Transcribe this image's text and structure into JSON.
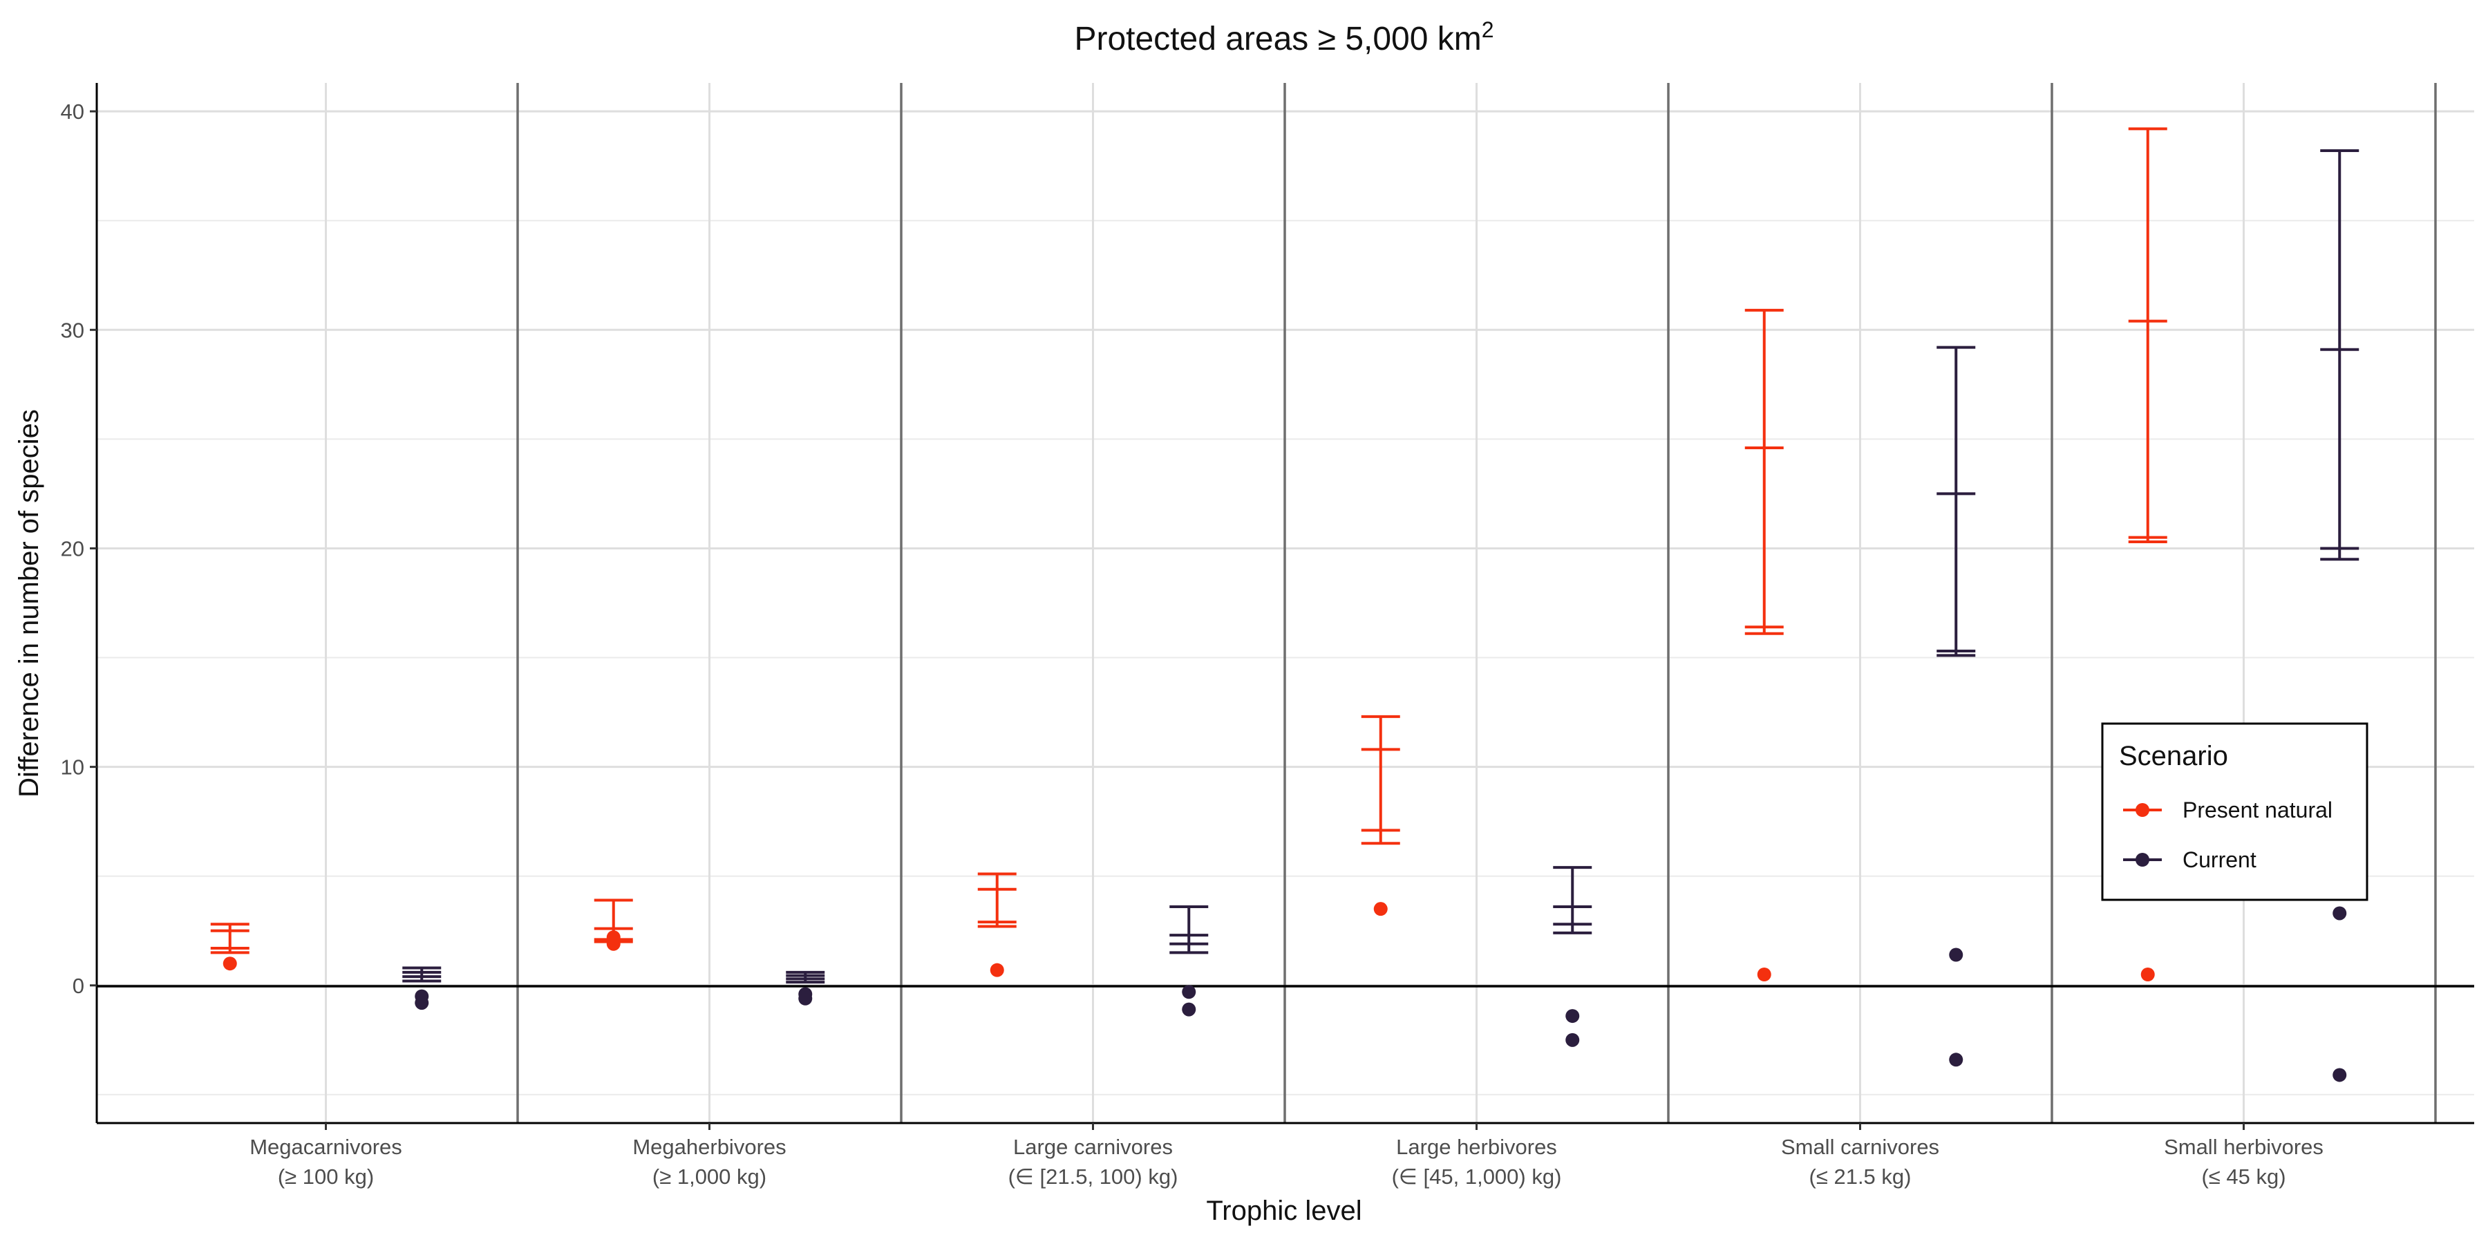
{
  "chart_data": {
    "type": "scatter",
    "title": "Protected areas ≥ 5,000 km",
    "title_superscript": "2",
    "xlabel": "Trophic level",
    "ylabel": "Difference in number of species",
    "ylim": [
      -6.3,
      41.3
    ],
    "yticks": [
      0,
      10,
      20,
      30,
      40
    ],
    "grid": true,
    "categories": [
      {
        "name": "Megacarnivores",
        "sub": "(≥ 100 kg)"
      },
      {
        "name": "Megaherbivores",
        "sub": "(≥ 1,000 kg)"
      },
      {
        "name": "Large carnivores",
        "sub": "(∈ [21.5, 100) kg)"
      },
      {
        "name": "Large herbivores",
        "sub": "(∈ [45, 1,000) kg)"
      },
      {
        "name": "Small carnivores",
        "sub": "(≤ 21.5 kg)"
      },
      {
        "name": "Small herbivores",
        "sub": "(≤ 45 kg)"
      }
    ],
    "legend": {
      "title": "Scenario",
      "position": "right"
    },
    "series": [
      {
        "name": "Present natural",
        "color": "#F4300F",
        "points": [
          [
            1.0
          ],
          [
            1.9,
            2.2
          ],
          [
            0.7
          ],
          [
            3.5
          ],
          [
            0.5
          ],
          [
            0.5
          ]
        ],
        "errorbars": [
          [
            1.5,
            1.7,
            2.5,
            2.8
          ],
          [
            2.0,
            2.1,
            2.6,
            3.9
          ],
          [
            2.7,
            2.9,
            4.4,
            5.1
          ],
          [
            6.5,
            7.1,
            10.8,
            12.3
          ],
          [
            16.1,
            16.4,
            24.6,
            30.9
          ],
          [
            20.3,
            20.5,
            30.4,
            39.2
          ]
        ]
      },
      {
        "name": "Current",
        "color": "#2B1E3E",
        "points": [
          [
            -0.5,
            -0.8
          ],
          [
            -0.4,
            -0.6
          ],
          [
            -0.3,
            -1.1
          ],
          [
            -1.4,
            -2.5
          ],
          [
            1.4,
            -3.4
          ],
          [
            3.3,
            -4.1
          ]
        ],
        "errorbars": [
          [
            0.2,
            0.4,
            0.6,
            0.8
          ],
          [
            0.15,
            0.3,
            0.45,
            0.6
          ],
          [
            1.5,
            1.9,
            2.3,
            3.6
          ],
          [
            2.4,
            2.8,
            3.6,
            5.4
          ],
          [
            15.1,
            15.3,
            22.5,
            29.2
          ],
          [
            19.5,
            20.0,
            29.1,
            38.2
          ]
        ]
      }
    ]
  }
}
